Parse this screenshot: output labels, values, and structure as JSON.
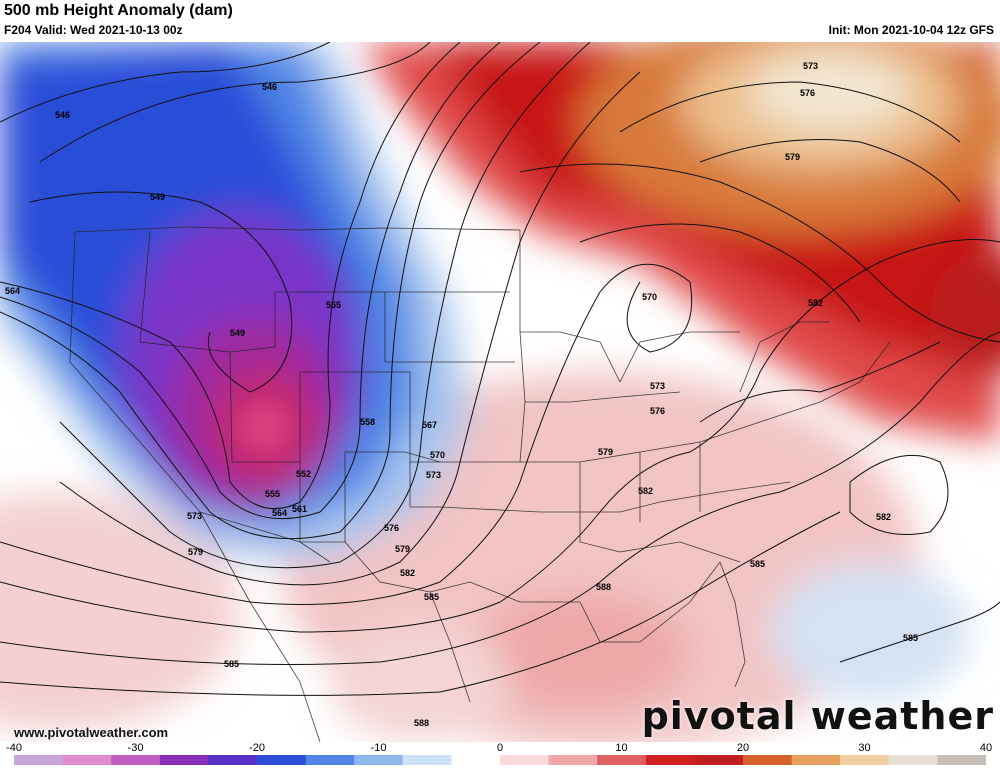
{
  "header": {
    "title": "500 mb Height Anomaly (dam)",
    "valid": "F204 Valid: Wed 2021-10-13 00z",
    "init": "Init: Mon 2021-10-04 12z GFS"
  },
  "footer": {
    "website": "www.pivotalweather.com",
    "brand": "pivotal weather"
  },
  "colorbar": {
    "ticks": [
      "-40",
      "-30",
      "-20",
      "-10",
      "0",
      "10",
      "20",
      "30",
      "40"
    ],
    "min": -40,
    "max": 40,
    "stops": [
      "#c9a6d8",
      "#e58ccf",
      "#c060c0",
      "#8a2fb8",
      "#5a2fc8",
      "#2a4ed8",
      "#4f86e6",
      "#8db8ee",
      "#cde0f6",
      "#ffffff",
      "#f8d8d8",
      "#f0a8a8",
      "#e06060",
      "#d02020",
      "#c02020",
      "#d8602a",
      "#e8a060",
      "#f0d0a0",
      "#e8e0d8",
      "#c8c0b8"
    ]
  },
  "contour_labels": [
    "546",
    "546",
    "549",
    "549",
    "552",
    "555",
    "555",
    "558",
    "561",
    "564",
    "564",
    "567",
    "570",
    "570",
    "573",
    "573",
    "573",
    "573",
    "576",
    "576",
    "576",
    "579",
    "579",
    "579",
    "579",
    "582",
    "582",
    "582",
    "582",
    "585",
    "585",
    "585",
    "585",
    "588",
    "588"
  ],
  "colors": {
    "trough_core": "#b01868",
    "trough_purple": "#8a2fb8",
    "trough_blue": "#2a4ed8",
    "ridge_red": "#c81818",
    "ridge_orange": "#d87a3a",
    "ridge_cream": "#f3e6d2",
    "light_pink": "#f6d6d6",
    "light_blue": "#cfe0f4"
  }
}
